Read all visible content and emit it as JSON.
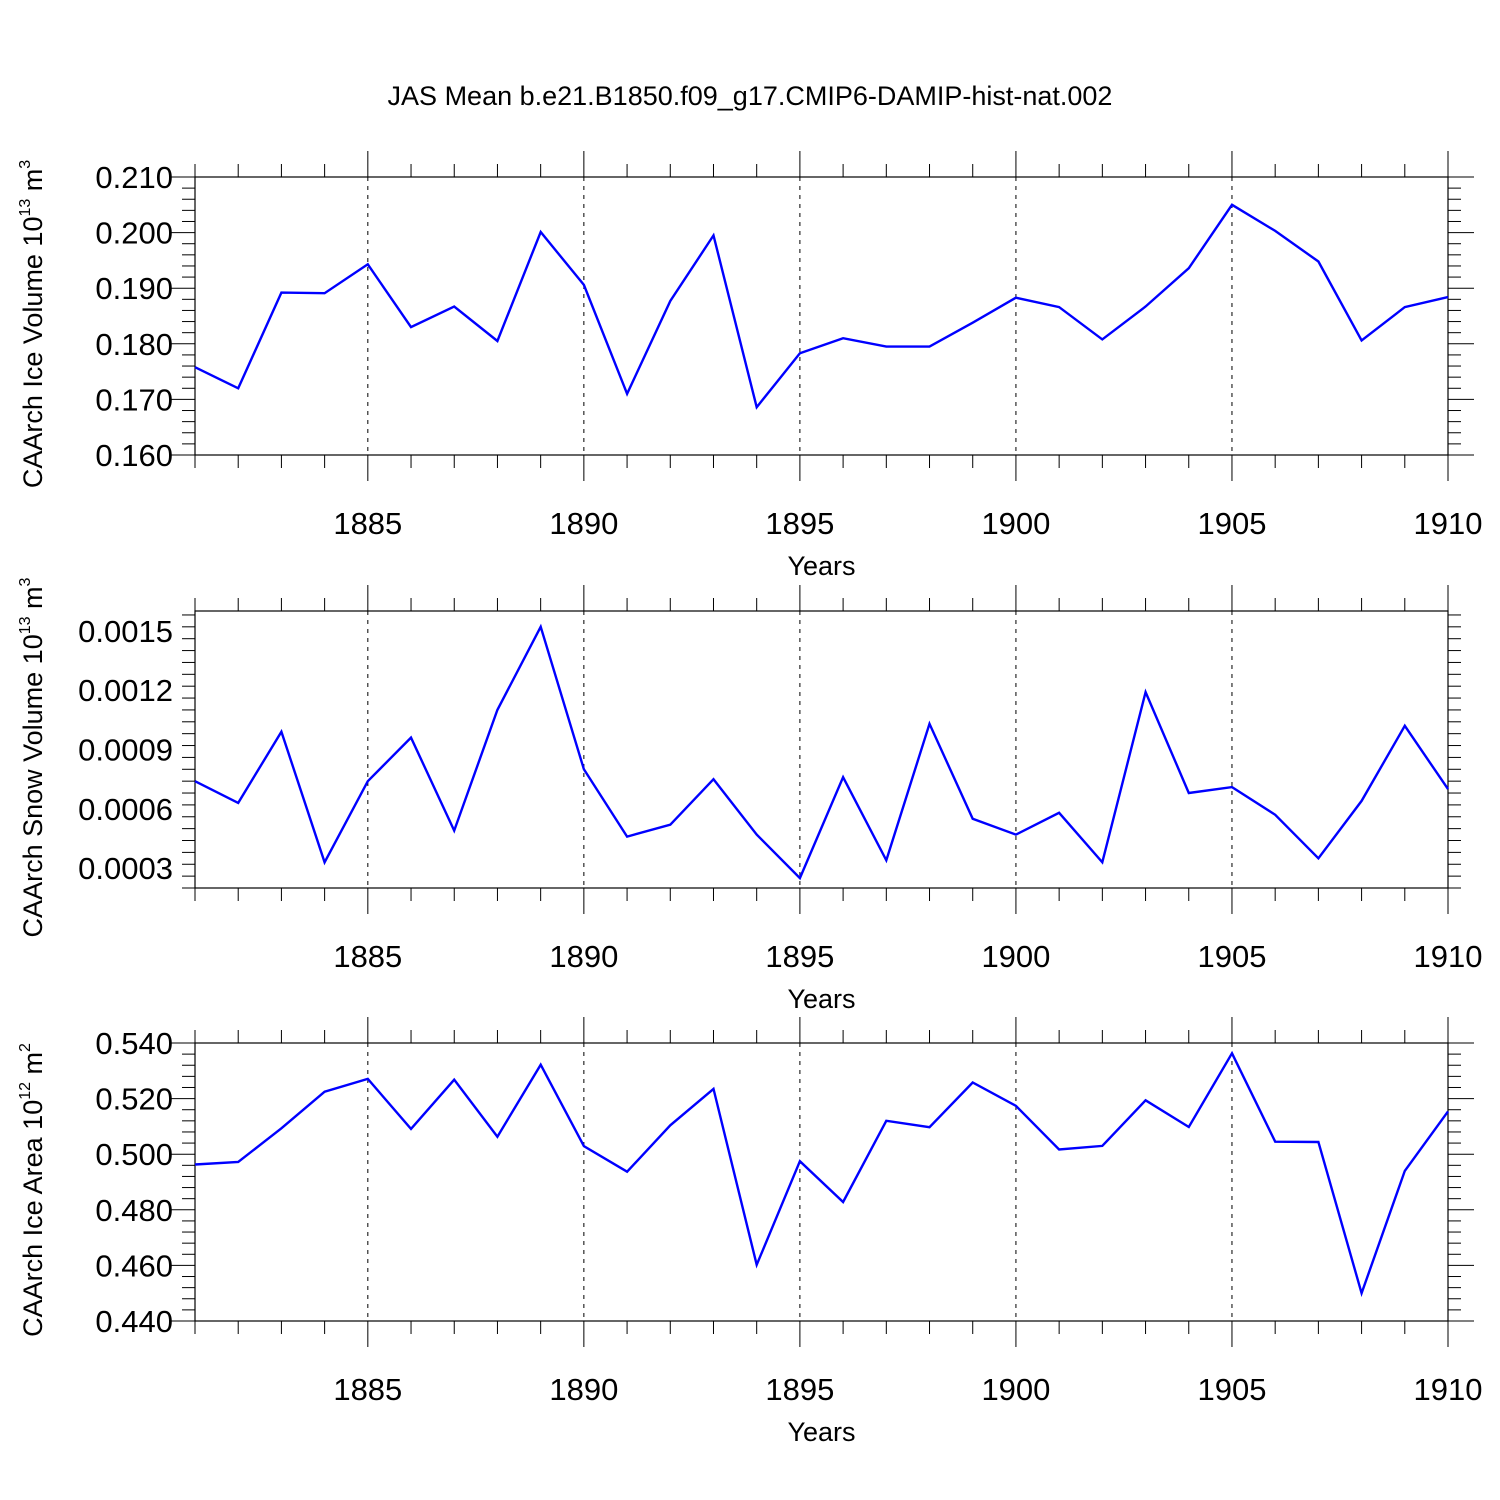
{
  "figure": {
    "title": "JAS Mean b.e21.B1850.f09_g17.CMIP6-DAMIP-hist-nat.002"
  },
  "chart_data": [
    {
      "type": "line",
      "title": "",
      "xlabel": "Years",
      "ylabel": {
        "text": "CAArch Ice Volume 10",
        "sup": "13",
        "unit": " m",
        "unit_sup": "3"
      },
      "xlim": [
        1881,
        1910
      ],
      "ylim": [
        0.16,
        0.21
      ],
      "xticks": [
        1885,
        1890,
        1895,
        1900,
        1905,
        1910
      ],
      "yticks": [
        "0.160",
        "0.170",
        "0.180",
        "0.190",
        "0.200",
        "0.210"
      ],
      "grid": "dashed vertical at major x ticks",
      "series": [
        {
          "color": "#0000ff",
          "x": [
            1881,
            1882,
            1883,
            1884,
            1885,
            1886,
            1887,
            1888,
            1889,
            1890,
            1891,
            1892,
            1893,
            1894,
            1895,
            1896,
            1897,
            1898,
            1899,
            1900,
            1901,
            1902,
            1903,
            1904,
            1905,
            1906,
            1907,
            1908,
            1909,
            1910
          ],
          "y": [
            0.1758,
            0.172,
            0.1892,
            0.1891,
            0.1943,
            0.183,
            0.1867,
            0.1805,
            0.2001,
            0.1906,
            0.171,
            0.1877,
            0.1995,
            0.1686,
            0.1783,
            0.181,
            0.1795,
            0.1795,
            0.1838,
            0.1883,
            0.1866,
            0.1808,
            0.1867,
            0.1936,
            0.205,
            0.2003,
            0.1948,
            0.1806,
            0.1866,
            0.1884
          ]
        }
      ]
    },
    {
      "type": "line",
      "title": "",
      "xlabel": "Years",
      "ylabel": {
        "text": "CAArch Snow Volume 10",
        "sup": "13",
        "unit": " m",
        "unit_sup": "3"
      },
      "xlim": [
        1881,
        1910
      ],
      "ylim": [
        0.0002,
        0.0016
      ],
      "xticks": [
        1885,
        1890,
        1895,
        1900,
        1905,
        1910
      ],
      "yticks": [
        "0.0003",
        "0.0006",
        "0.0009",
        "0.0012",
        "0.0015"
      ],
      "grid": "dashed vertical at major x ticks",
      "series": [
        {
          "color": "#0000ff",
          "x": [
            1881,
            1882,
            1883,
            1884,
            1885,
            1886,
            1887,
            1888,
            1889,
            1890,
            1891,
            1892,
            1893,
            1894,
            1895,
            1896,
            1897,
            1898,
            1899,
            1900,
            1901,
            1902,
            1903,
            1904,
            1905,
            1906,
            1907,
            1908,
            1909,
            1910
          ],
          "y": [
            0.00074,
            0.00063,
            0.00099,
            0.00033,
            0.00074,
            0.00096,
            0.00049,
            0.0011,
            0.00152,
            0.0008,
            0.00046,
            0.00052,
            0.00075,
            0.00047,
            0.00025,
            0.00076,
            0.00034,
            0.00103,
            0.00055,
            0.00047,
            0.00058,
            0.00033,
            0.00119,
            0.00068,
            0.00071,
            0.00057,
            0.00035,
            0.00064,
            0.00102,
            0.0007
          ]
        }
      ]
    },
    {
      "type": "line",
      "title": "",
      "xlabel": "Years",
      "ylabel": {
        "text": "CAArch Ice Area 10",
        "sup": "12",
        "unit": " m",
        "unit_sup": "2"
      },
      "xlim": [
        1881,
        1910
      ],
      "ylim": [
        0.44,
        0.54
      ],
      "xticks": [
        1885,
        1890,
        1895,
        1900,
        1905,
        1910
      ],
      "yticks": [
        "0.440",
        "0.460",
        "0.480",
        "0.500",
        "0.520",
        "0.540"
      ],
      "grid": "dashed vertical at major x ticks",
      "series": [
        {
          "color": "#0000ff",
          "x": [
            1881,
            1882,
            1883,
            1884,
            1885,
            1886,
            1887,
            1888,
            1889,
            1890,
            1891,
            1892,
            1893,
            1894,
            1895,
            1896,
            1897,
            1898,
            1899,
            1900,
            1901,
            1902,
            1903,
            1904,
            1905,
            1906,
            1907,
            1908,
            1909,
            1910
          ],
          "y": [
            0.4963,
            0.4972,
            0.5093,
            0.5225,
            0.5271,
            0.5091,
            0.5268,
            0.5063,
            0.5322,
            0.5029,
            0.4937,
            0.5104,
            0.5235,
            0.4602,
            0.4975,
            0.4828,
            0.512,
            0.5097,
            0.5258,
            0.5174,
            0.5017,
            0.503,
            0.5194,
            0.5098,
            0.5363,
            0.5045,
            0.5044,
            0.45,
            0.494,
            0.5154
          ]
        }
      ]
    }
  ]
}
